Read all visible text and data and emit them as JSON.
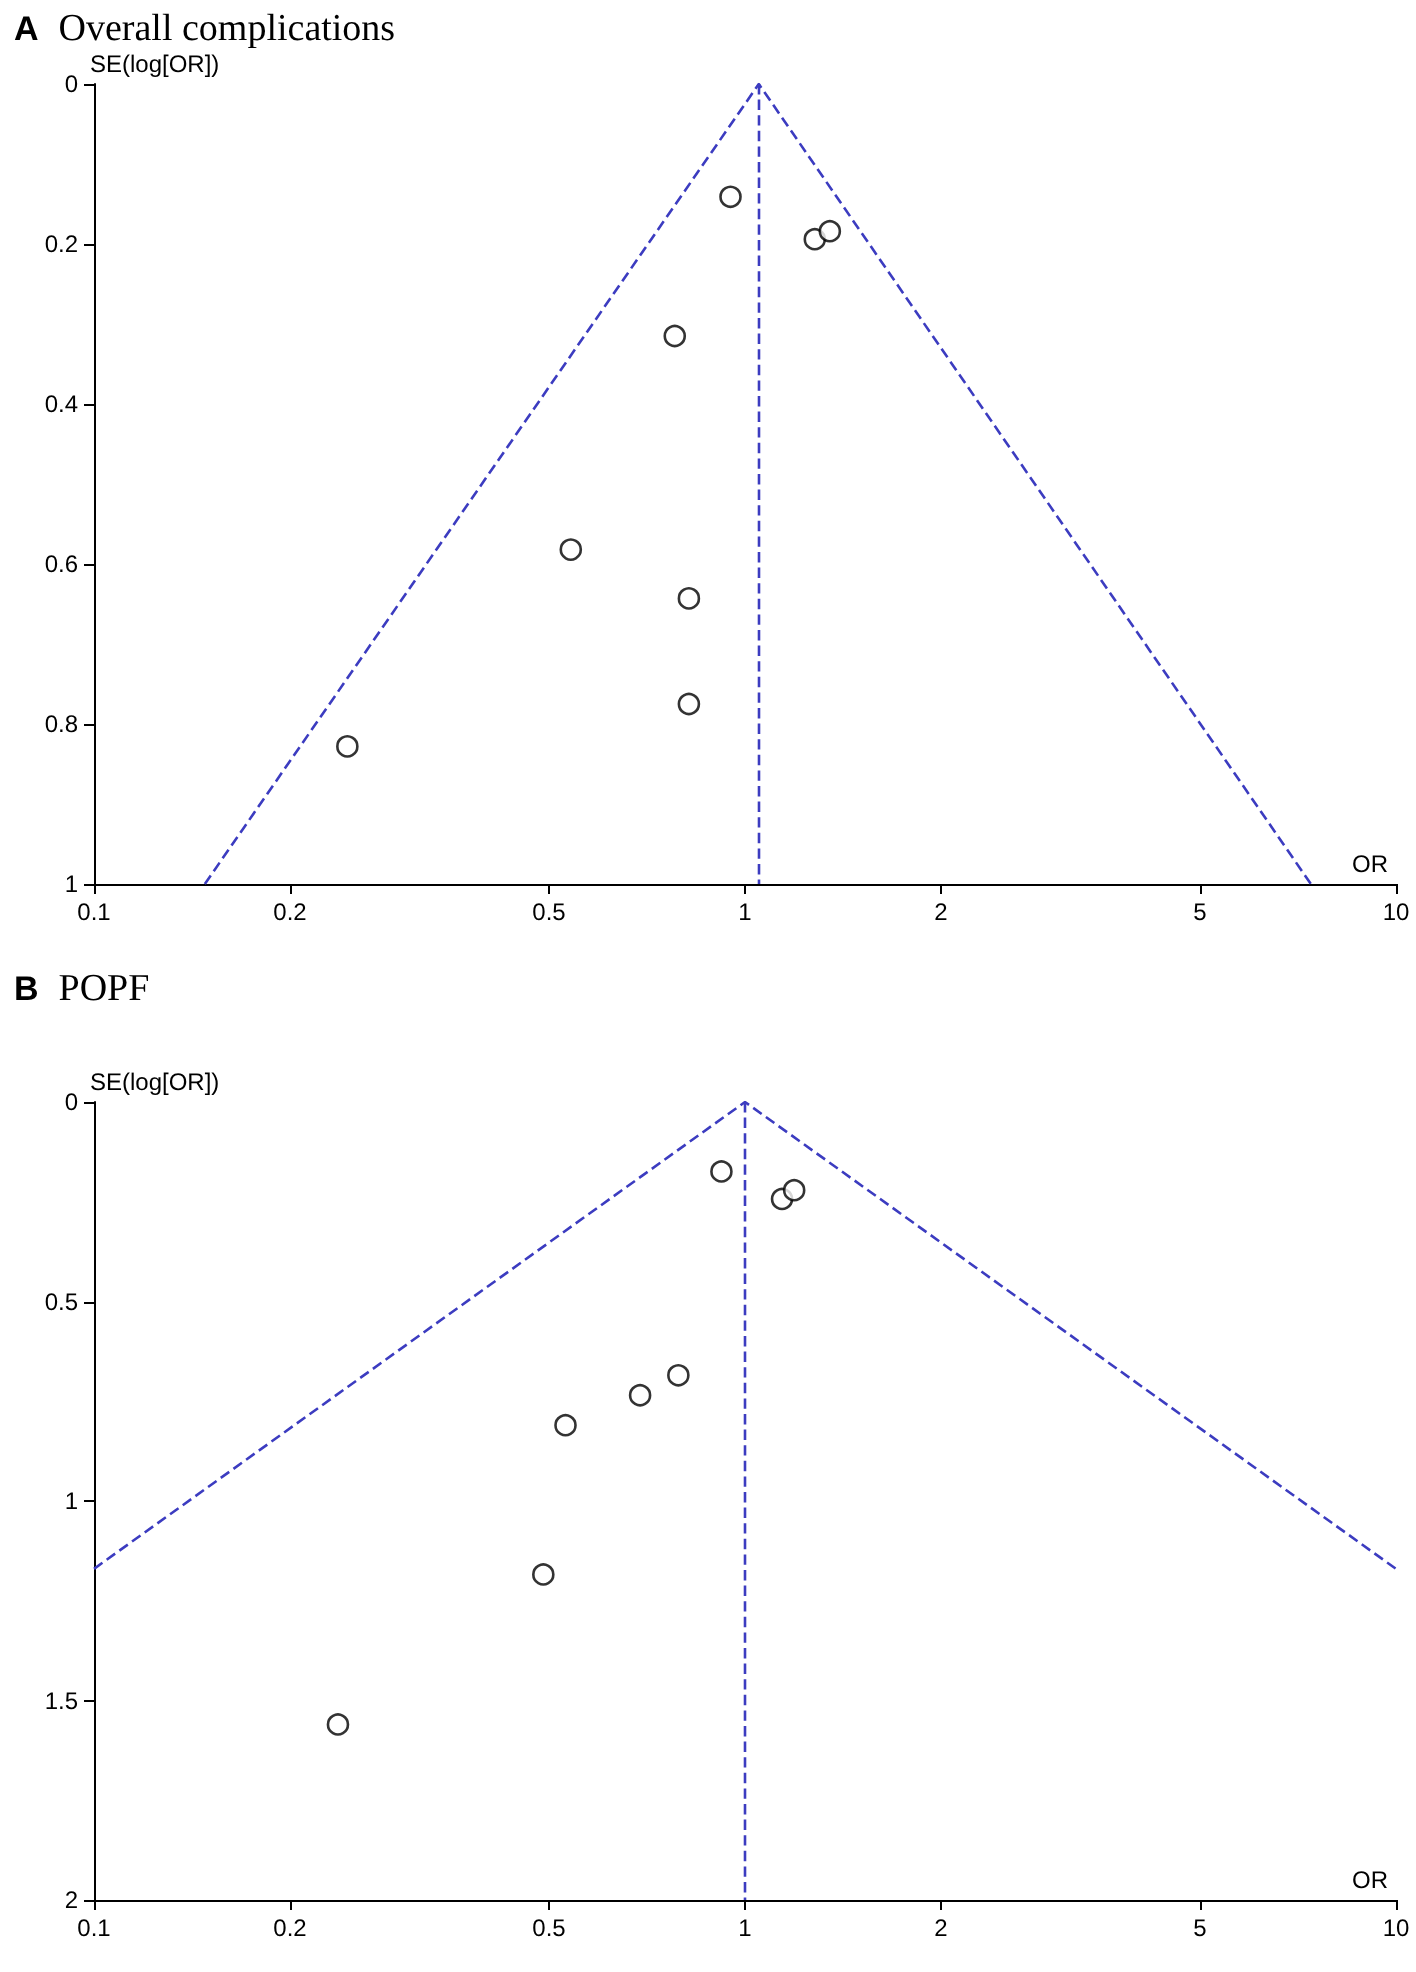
{
  "chart_data": [
    {
      "type": "scatter",
      "title": "A Overall complications",
      "xlabel": "OR",
      "ylabel": "SE(log[OR])",
      "log": "x",
      "grid": false,
      "xlim": [
        0.1,
        10
      ],
      "xticks": [
        0.1,
        0.2,
        0.5,
        1,
        2,
        5,
        10
      ],
      "ylim": [
        1,
        0
      ],
      "yticks": [
        0,
        0.2,
        0.4,
        0.6,
        0.8,
        1
      ],
      "series": [
        {
          "color": "#000000",
          "marker": "circle",
          "x": [
            0.95,
            1.28,
            1.35,
            0.78,
            0.54,
            0.82,
            0.82,
            0.245
          ],
          "values": [
            0.141,
            0.194,
            0.184,
            0.315,
            0.582,
            0.643,
            0.775,
            0.828
          ]
        },
        {
          "type": "line",
          "color": "#3c3cc0",
          "marker": "none",
          "line_style": "dashed",
          "x": [
            0.148,
            1.05,
            7.4
          ],
          "values": [
            1,
            0,
            1
          ]
        }
      ],
      "ref_lines": [
        {
          "axis": "x",
          "value": 1.05,
          "color": "#3c3cc0",
          "line_style": "dashed"
        }
      ]
    },
    {
      "type": "scatter",
      "title": "B POPF",
      "xlabel": "OR",
      "ylabel": "SE(log[OR])",
      "log": "x",
      "grid": false,
      "xlim": [
        0.1,
        10
      ],
      "xticks": [
        0.1,
        0.2,
        0.5,
        1,
        2,
        5,
        10
      ],
      "ylim": [
        2,
        0
      ],
      "yticks": [
        0,
        0.5,
        1,
        1.5,
        2
      ],
      "series": [
        {
          "color": "#000000",
          "marker": "circle",
          "x": [
            0.92,
            1.14,
            1.19,
            0.79,
            0.69,
            0.53,
            0.49,
            0.237
          ],
          "values": [
            0.174,
            0.243,
            0.221,
            0.685,
            0.735,
            0.81,
            1.184,
            1.56
          ]
        },
        {
          "type": "line",
          "color": "#3c3cc0",
          "marker": "none",
          "line_style": "dashed",
          "x": [
            0.1,
            1,
            10
          ],
          "values": [
            1.17,
            0,
            1.17
          ]
        }
      ],
      "ref_lines": [
        {
          "axis": "x",
          "value": 1,
          "color": "#3c3cc0",
          "line_style": "dashed"
        }
      ]
    }
  ]
}
